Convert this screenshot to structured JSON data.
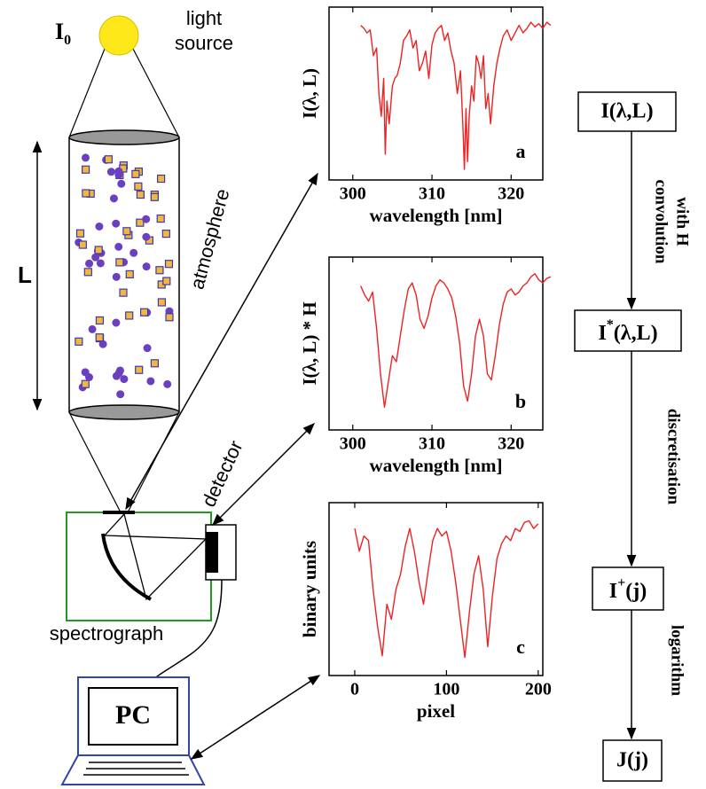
{
  "diagram": {
    "source_symbol": "I",
    "source_subscript": "0",
    "source_label_line1": "light",
    "source_label_line2": "source",
    "length_label": "L",
    "atmosphere_label": "atmosphere",
    "detector_label": "detector",
    "spectrograph_label": "spectrograph",
    "pc_label": "PC",
    "flow": {
      "box1": "I(λ,L)",
      "step1_line1": "convolution",
      "step1_line2": "with H",
      "box2_base": "I",
      "box2_sup": "*",
      "box2_rest": "(λ,L)",
      "step2": "discretisation",
      "box3_base": "I",
      "box3_sup": "+",
      "box3_rest": "(j)",
      "step3": "logarithm",
      "box4": "J(j)"
    }
  },
  "chart_data": [
    {
      "type": "line",
      "ylabel": "I(λ, L)",
      "xlabel": "wavelength [nm]",
      "panel": "a",
      "color": "#ee2222",
      "xlim": [
        297,
        324
      ],
      "ylim": [
        0,
        1
      ],
      "xticks": [
        300,
        310,
        320
      ],
      "x": [
        301,
        301.4,
        301.8,
        302.2,
        302.6,
        303,
        303.3,
        303.6,
        303.9,
        304.1,
        304.3,
        304.6,
        305,
        305.3,
        305.6,
        306,
        306.4,
        306.8,
        307.2,
        307.6,
        308,
        308.4,
        308.8,
        309.2,
        309.6,
        310,
        310.4,
        310.8,
        311.2,
        311.6,
        312,
        312.4,
        312.8,
        313.2,
        313.6,
        313.9,
        314.1,
        314.3,
        314.5,
        314.7,
        315,
        315.3,
        315.6,
        315.9,
        316.2,
        316.5,
        316.8,
        317.1,
        317.4,
        317.8,
        318.2,
        318.6,
        319,
        319.5,
        320,
        320.5,
        321,
        321.5,
        322,
        322.5,
        323,
        323.5,
        324,
        324.5,
        325
      ],
      "values": [
        0.95,
        0.93,
        0.9,
        0.92,
        0.75,
        0.8,
        0.5,
        0.35,
        0.6,
        0.1,
        0.45,
        0.3,
        0.55,
        0.6,
        0.62,
        0.7,
        0.85,
        0.88,
        0.92,
        0.8,
        0.85,
        0.65,
        0.7,
        0.78,
        0.6,
        0.82,
        0.9,
        0.93,
        0.95,
        0.85,
        0.9,
        0.78,
        0.7,
        0.5,
        0.65,
        0.3,
        0.0,
        0.4,
        0.05,
        0.35,
        0.55,
        0.45,
        0.75,
        0.7,
        0.6,
        0.75,
        0.4,
        0.5,
        0.3,
        0.55,
        0.7,
        0.8,
        0.88,
        0.92,
        0.85,
        0.9,
        0.95,
        0.9,
        0.93,
        0.97,
        0.94,
        0.96,
        0.93,
        0.97,
        0.95
      ]
    },
    {
      "type": "line",
      "ylabel": "I(λ, L) * H",
      "xlabel": "wavelength [nm]",
      "panel": "b",
      "color": "#ee2222",
      "xlim": [
        297,
        324
      ],
      "ylim": [
        0,
        1
      ],
      "xticks": [
        300,
        310,
        320
      ],
      "x": [
        301,
        301.5,
        302,
        302.5,
        303,
        303.5,
        304,
        304.5,
        305,
        305.5,
        306,
        306.5,
        307,
        307.5,
        308,
        308.5,
        309,
        309.5,
        310,
        310.5,
        311,
        311.5,
        312,
        312.5,
        313,
        313.5,
        314,
        314.5,
        315,
        315.5,
        316,
        316.5,
        317,
        317.5,
        318,
        318.5,
        319,
        319.5,
        320,
        320.5,
        321,
        321.5,
        322,
        322.5,
        323,
        323.5,
        324,
        324.5,
        325
      ],
      "values": [
        0.88,
        0.82,
        0.78,
        0.84,
        0.6,
        0.3,
        0.08,
        0.25,
        0.42,
        0.38,
        0.55,
        0.72,
        0.86,
        0.9,
        0.82,
        0.66,
        0.6,
        0.68,
        0.8,
        0.88,
        0.92,
        0.9,
        0.86,
        0.8,
        0.68,
        0.5,
        0.22,
        0.12,
        0.3,
        0.55,
        0.66,
        0.55,
        0.3,
        0.26,
        0.42,
        0.62,
        0.76,
        0.84,
        0.86,
        0.82,
        0.84,
        0.88,
        0.9,
        0.94,
        0.96,
        0.92,
        0.9,
        0.93,
        0.94
      ]
    },
    {
      "type": "line",
      "ylabel": "binary units",
      "xlabel": "pixel",
      "panel": "c",
      "color": "#ee2222",
      "xlim": [
        -28,
        205
      ],
      "ylim": [
        0,
        1
      ],
      "xticks": [
        0,
        100,
        200
      ],
      "x": [
        0,
        5,
        10,
        15,
        20,
        25,
        30,
        35,
        40,
        45,
        50,
        55,
        60,
        65,
        70,
        75,
        80,
        85,
        90,
        95,
        100,
        105,
        110,
        115,
        120,
        125,
        130,
        135,
        140,
        145,
        150,
        155,
        160,
        165,
        170,
        175,
        180,
        185,
        190,
        195,
        200
      ],
      "values": [
        0.9,
        0.75,
        0.85,
        0.82,
        0.5,
        0.25,
        0.06,
        0.4,
        0.3,
        0.5,
        0.6,
        0.78,
        0.9,
        0.75,
        0.55,
        0.4,
        0.62,
        0.82,
        0.9,
        0.85,
        0.88,
        0.75,
        0.55,
        0.3,
        0.05,
        0.35,
        0.6,
        0.72,
        0.5,
        0.12,
        0.45,
        0.7,
        0.8,
        0.85,
        0.82,
        0.9,
        0.88,
        0.94,
        0.95,
        0.9,
        0.93
      ]
    }
  ]
}
